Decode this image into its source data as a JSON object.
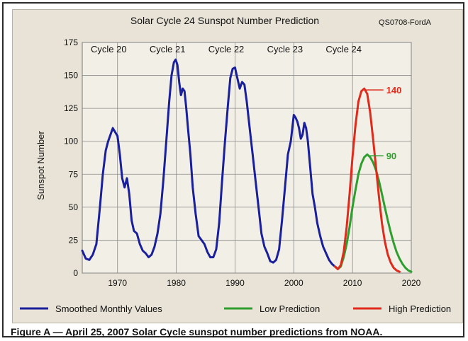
{
  "figure_caption": "Figure A  —  April 25, 2007 Solar Cycle sunspot number predictions from NOAA.",
  "chart_data": {
    "type": "line",
    "title": "Solar Cycle 24 Sunspot Number Prediction",
    "corner_tag": "QS0708-FordA",
    "ylabel": "Sunspot Number",
    "xlabel": "",
    "xlim": [
      1964,
      2020
    ],
    "ylim": [
      0,
      175
    ],
    "x_ticks": [
      1970,
      1980,
      1990,
      2000,
      2010,
      2020
    ],
    "y_ticks": [
      0,
      25,
      50,
      75,
      100,
      125,
      150,
      175
    ],
    "grid": true,
    "legend_position": "bottom",
    "cycle_labels": [
      {
        "text": "Cycle 20",
        "x": 1968.5
      },
      {
        "text": "Cycle 21",
        "x": 1978.5
      },
      {
        "text": "Cycle 22",
        "x": 1988.5
      },
      {
        "text": "Cycle 23",
        "x": 1998.5
      },
      {
        "text": "Cycle 24",
        "x": 2008.5
      }
    ],
    "annotations": [
      {
        "text": "140",
        "x": 2015.5,
        "y": 139,
        "color": "#e02a1b"
      },
      {
        "text": "90",
        "x": 2015.5,
        "y": 89,
        "color": "#2e9e2e"
      }
    ],
    "series": [
      {
        "name": "Smoothed Monthly Values",
        "color": "#1a1f9c",
        "x": [
          1964.0,
          1964.6,
          1965.2,
          1965.8,
          1966.4,
          1967.0,
          1967.5,
          1968.0,
          1968.4,
          1968.8,
          1969.2,
          1969.6,
          1970.0,
          1970.4,
          1970.8,
          1971.2,
          1971.6,
          1972.0,
          1972.4,
          1972.8,
          1973.3,
          1973.8,
          1974.3,
          1974.8,
          1975.3,
          1975.8,
          1976.3,
          1976.8,
          1977.3,
          1977.8,
          1978.3,
          1978.8,
          1979.2,
          1979.6,
          1979.9,
          1980.2,
          1980.5,
          1980.8,
          1981.1,
          1981.4,
          1981.7,
          1982.0,
          1982.4,
          1982.8,
          1983.3,
          1983.8,
          1984.3,
          1984.8,
          1985.3,
          1985.8,
          1986.3,
          1986.8,
          1987.3,
          1987.8,
          1988.3,
          1988.8,
          1989.2,
          1989.6,
          1990.0,
          1990.4,
          1990.8,
          1991.2,
          1991.6,
          1992.0,
          1992.5,
          1993.0,
          1993.5,
          1994.0,
          1994.5,
          1995.0,
          1995.5,
          1996.0,
          1996.5,
          1997.0,
          1997.5,
          1998.0,
          1998.5,
          1999.0,
          1999.5,
          2000.0,
          2000.3,
          2000.6,
          2000.9,
          2001.2,
          2001.5,
          2001.8,
          2002.1,
          2002.4,
          2002.8,
          2003.2,
          2003.6,
          2004.0,
          2004.5,
          2005.0,
          2005.5,
          2006.0,
          2006.5,
          2007.0,
          2007.3
        ],
        "values": [
          17,
          11,
          10,
          14,
          22,
          50,
          75,
          93,
          100,
          105,
          110,
          107,
          104,
          90,
          72,
          65,
          72,
          60,
          40,
          32,
          30,
          22,
          17,
          15,
          12,
          14,
          20,
          30,
          45,
          70,
          100,
          130,
          150,
          160,
          162,
          158,
          145,
          135,
          140,
          138,
          125,
          110,
          90,
          65,
          45,
          28,
          25,
          22,
          16,
          12,
          12,
          18,
          38,
          70,
          100,
          128,
          148,
          155,
          156,
          148,
          140,
          145,
          143,
          130,
          110,
          90,
          70,
          50,
          30,
          20,
          15,
          9,
          8,
          10,
          18,
          40,
          65,
          90,
          100,
          120,
          118,
          115,
          110,
          102,
          105,
          114,
          110,
          100,
          80,
          60,
          50,
          38,
          28,
          20,
          15,
          10,
          7,
          5,
          4
        ]
      },
      {
        "name": "Low Prediction",
        "color": "#2e9e2e",
        "x": [
          2007.0,
          2007.5,
          2008.0,
          2008.5,
          2009.0,
          2009.5,
          2010.0,
          2010.5,
          2011.0,
          2011.5,
          2012.0,
          2012.5,
          2013.0,
          2013.5,
          2014.0,
          2014.5,
          2015.0,
          2015.5,
          2016.0,
          2016.5,
          2017.0,
          2017.5,
          2018.0,
          2018.5,
          2019.0,
          2019.5,
          2020.0
        ],
        "values": [
          5,
          3,
          5,
          12,
          22,
          35,
          50,
          63,
          75,
          83,
          88,
          90,
          88,
          84,
          78,
          70,
          60,
          50,
          40,
          31,
          23,
          16,
          11,
          7,
          4,
          2,
          1
        ]
      },
      {
        "name": "High Prediction",
        "color": "#e02a1b",
        "x": [
          2007.0,
          2007.5,
          2008.0,
          2008.5,
          2009.0,
          2009.5,
          2010.0,
          2010.5,
          2011.0,
          2011.5,
          2012.0,
          2012.5,
          2013.0,
          2013.5,
          2014.0,
          2014.5,
          2015.0,
          2015.5,
          2016.0,
          2016.5,
          2017.0,
          2017.5,
          2018.0
        ],
        "values": [
          5,
          3,
          6,
          16,
          35,
          60,
          88,
          112,
          130,
          138,
          140,
          136,
          122,
          102,
          80,
          58,
          38,
          24,
          14,
          8,
          4,
          2,
          1
        ]
      }
    ]
  }
}
